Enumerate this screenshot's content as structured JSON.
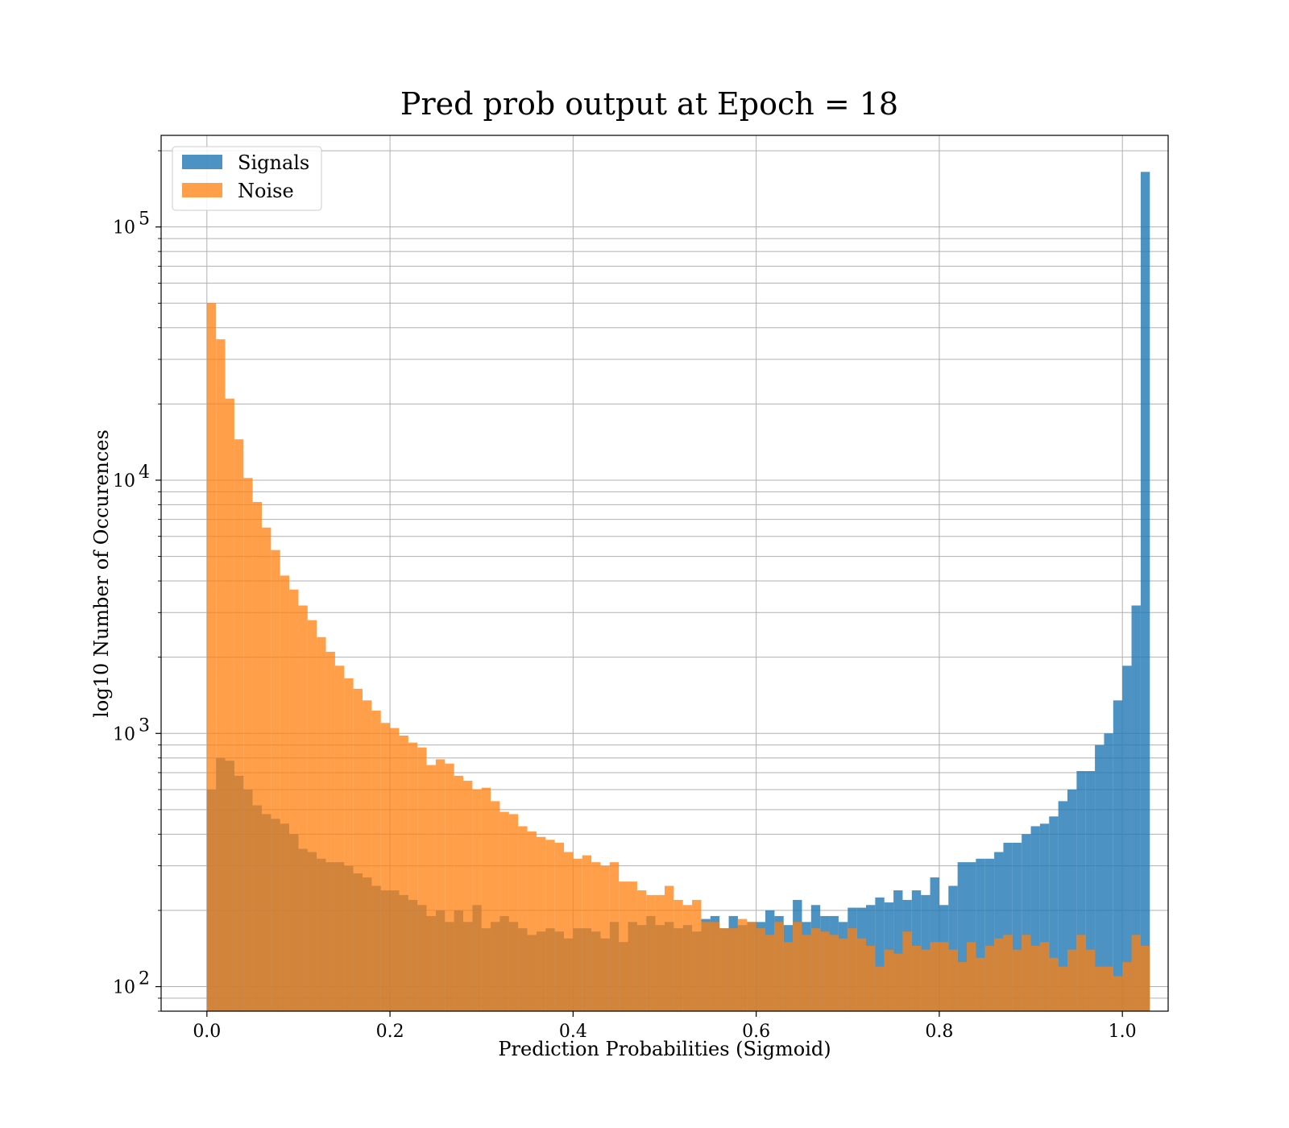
{
  "chart_data": {
    "type": "histogram",
    "title": "Pred prob output at Epoch = 18",
    "xlabel": "Prediction Probabilities (Sigmoid)",
    "ylabel": "log10 Number of Occurences",
    "xlim": [
      -0.05,
      1.05
    ],
    "ylim": [
      80,
      230000
    ],
    "yscale": "log",
    "grid": true,
    "legend_position": "top-left",
    "x_ticks": [
      0.0,
      0.2,
      0.4,
      0.6,
      0.8,
      1.0
    ],
    "x_tick_labels": [
      "0.0",
      "0.2",
      "0.4",
      "0.6",
      "0.8",
      "1.0"
    ],
    "y_ticks": [
      {
        "value": 100,
        "base": "10",
        "exp": "2"
      },
      {
        "value": 1000,
        "base": "10",
        "exp": "3"
      },
      {
        "value": 10000,
        "base": "10",
        "exp": "4"
      },
      {
        "value": 100000,
        "base": "10",
        "exp": "5"
      }
    ],
    "bin_start": 0.0,
    "bin_width": 0.01,
    "series": [
      {
        "name": "Signals",
        "color": "#1f77b4",
        "alpha": 0.8,
        "values": [
          600,
          800,
          780,
          680,
          600,
          520,
          480,
          460,
          440,
          400,
          350,
          340,
          320,
          310,
          310,
          300,
          280,
          270,
          250,
          240,
          240,
          230,
          220,
          210,
          190,
          200,
          180,
          200,
          180,
          210,
          170,
          180,
          190,
          180,
          170,
          160,
          165,
          170,
          165,
          155,
          170,
          170,
          165,
          155,
          180,
          150,
          180,
          175,
          190,
          175,
          180,
          170,
          175,
          165,
          185,
          190,
          170,
          190,
          175,
          180,
          180,
          200,
          190,
          175,
          220,
          180,
          210,
          190,
          190,
          180,
          205,
          205,
          210,
          225,
          215,
          240,
          220,
          240,
          230,
          270,
          210,
          250,
          310,
          310,
          320,
          320,
          340,
          370,
          370,
          400,
          430,
          440,
          470,
          540,
          600,
          710,
          710,
          900,
          1000,
          1350,
          1850,
          3200,
          165000
        ]
      },
      {
        "name": "Noise",
        "color": "#ff7f0e",
        "alpha": 0.75,
        "values": [
          50000,
          36000,
          21000,
          14500,
          10200,
          8200,
          6500,
          5300,
          4200,
          3700,
          3200,
          2800,
          2400,
          2100,
          1850,
          1650,
          1500,
          1350,
          1230,
          1100,
          1050,
          980,
          920,
          880,
          750,
          790,
          760,
          680,
          650,
          600,
          610,
          540,
          490,
          480,
          430,
          410,
          390,
          380,
          370,
          340,
          320,
          330,
          310,
          300,
          310,
          260,
          260,
          240,
          230,
          230,
          250,
          220,
          210,
          220,
          180,
          180,
          170,
          170,
          185,
          180,
          170,
          160,
          180,
          150,
          180,
          160,
          170,
          165,
          160,
          155,
          170,
          155,
          145,
          120,
          140,
          135,
          165,
          145,
          140,
          150,
          150,
          140,
          125,
          150,
          130,
          145,
          155,
          160,
          140,
          160,
          145,
          150,
          130,
          120,
          140,
          160,
          140,
          120,
          120,
          110,
          125,
          160,
          145
        ]
      }
    ]
  }
}
